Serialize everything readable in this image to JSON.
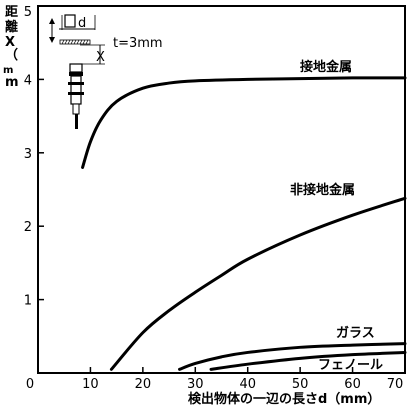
{
  "chart_data": {
    "type": "line",
    "xlabel": "検出物体の一辺の長さd（mm）",
    "ylabel": "距離X（mm）",
    "xlim": [
      0,
      70
    ],
    "ylim": [
      0,
      5
    ],
    "x_ticks": [
      "0",
      "10",
      "20",
      "30",
      "40",
      "50",
      "60",
      "70"
    ],
    "y_ticks": [
      "0",
      "1",
      "2",
      "3",
      "4",
      "5"
    ],
    "grid": false,
    "legend": "labels next to curves",
    "annotation": {
      "thickness_label": "t=3mm",
      "d_label": "d",
      "x_label": "X"
    },
    "series": [
      {
        "name": "接地金属",
        "x": [
          8.5,
          10,
          12,
          15,
          20,
          25,
          30,
          40,
          50,
          60,
          70
        ],
        "y": [
          2.8,
          3.15,
          3.45,
          3.7,
          3.88,
          3.95,
          3.98,
          4.0,
          4.01,
          4.02,
          4.02
        ]
      },
      {
        "name": "非接地金属",
        "x": [
          14,
          20,
          25,
          30,
          35,
          40,
          50,
          60,
          70
        ],
        "y": [
          0.05,
          0.55,
          0.85,
          1.1,
          1.33,
          1.55,
          1.88,
          2.15,
          2.38
        ]
      },
      {
        "name": "ガラス",
        "x": [
          27,
          30,
          35,
          40,
          50,
          60,
          70
        ],
        "y": [
          0.05,
          0.13,
          0.22,
          0.28,
          0.35,
          0.38,
          0.4
        ]
      },
      {
        "name": "フェノール",
        "x": [
          33,
          40,
          50,
          60,
          70
        ],
        "y": [
          0.05,
          0.12,
          0.2,
          0.25,
          0.28
        ]
      }
    ]
  }
}
